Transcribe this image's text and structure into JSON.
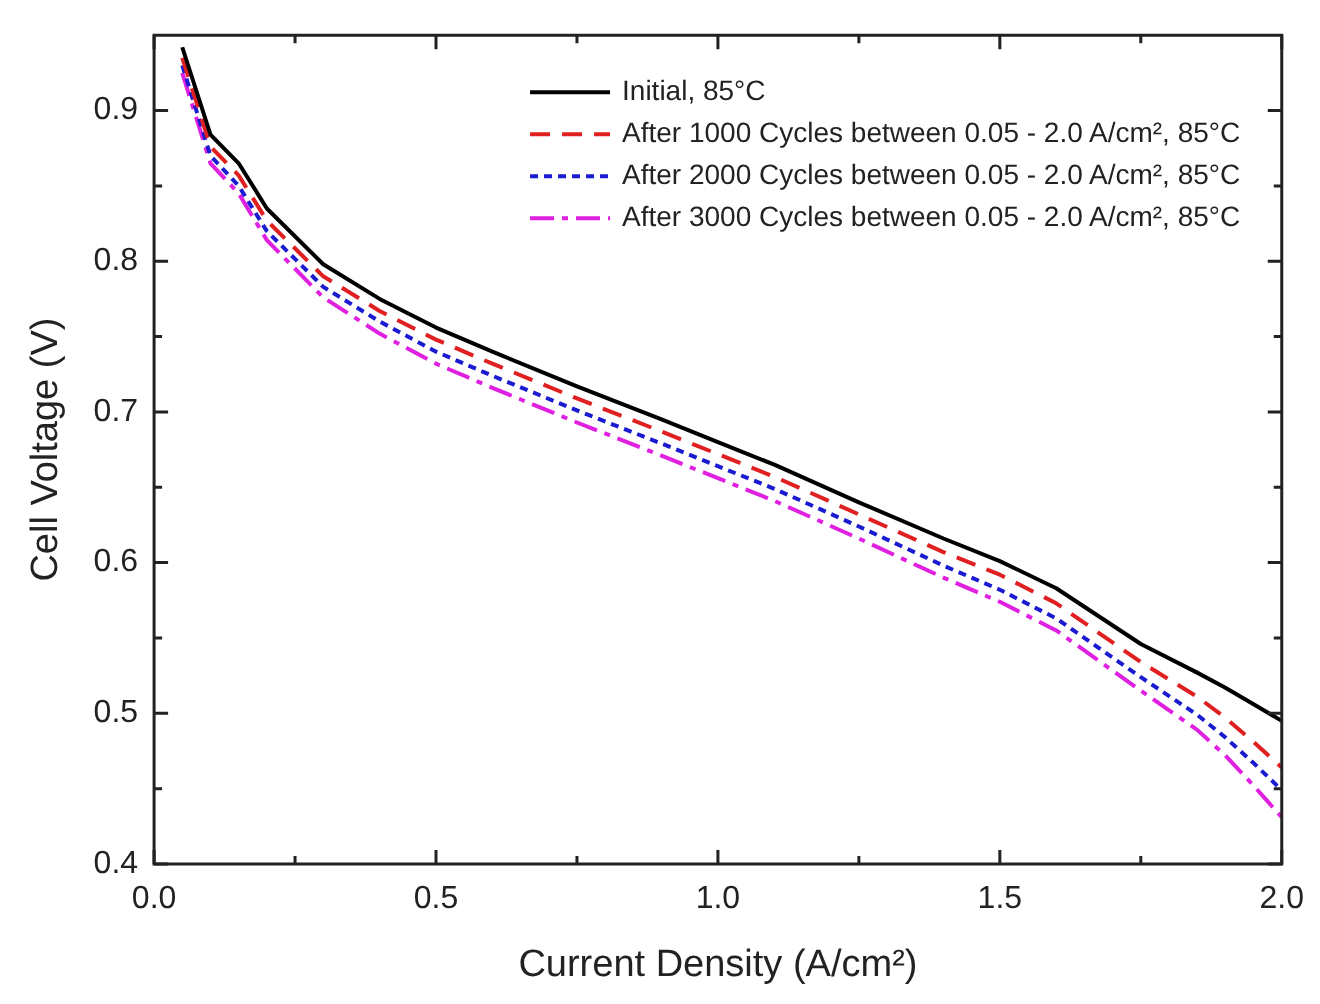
{
  "chart_data": {
    "type": "line",
    "xlabel": "Current Density (A/cm²)",
    "ylabel": "Cell Voltage (V)",
    "xlim": [
      0,
      2
    ],
    "ylim": [
      0.4,
      0.95
    ],
    "xticks": [
      {
        "value": 0,
        "label": "0.0"
      },
      {
        "value": 0.25,
        "label": null
      },
      {
        "value": 0.5,
        "label": "0.5"
      },
      {
        "value": 0.75,
        "label": null
      },
      {
        "value": 1,
        "label": "1.0"
      },
      {
        "value": 1.25,
        "label": null
      },
      {
        "value": 1.5,
        "label": "1.5"
      },
      {
        "value": 1.75,
        "label": null
      },
      {
        "value": 2,
        "label": "2.0"
      }
    ],
    "yticks": [
      0.4,
      {
        "value": 0.45,
        "label": null
      },
      0.5,
      {
        "value": 0.55,
        "label": null
      },
      0.6,
      {
        "value": 0.65,
        "label": null
      },
      0.7,
      {
        "value": 0.75,
        "label": null
      },
      0.8,
      {
        "value": 0.85,
        "label": null
      },
      0.9
    ],
    "x": [
      0.05,
      0.1,
      0.15,
      0.2,
      0.3,
      0.4,
      0.5,
      0.6,
      0.75,
      0.9,
      1.0,
      1.1,
      1.25,
      1.4,
      1.5,
      1.6,
      1.75,
      1.85,
      1.9,
      1.95,
      2.0
    ],
    "grid": false,
    "legend": "top right",
    "marker": "none",
    "series": [
      {
        "name": "Initial, 85°C",
        "color": "#000000",
        "line_style": "solid",
        "values": [
          0.942,
          0.884,
          0.865,
          0.835,
          0.798,
          0.775,
          0.756,
          0.74,
          0.717,
          0.695,
          0.68,
          0.665,
          0.64,
          0.616,
          0.601,
          0.583,
          0.546,
          0.527,
          0.517,
          0.506,
          0.495
        ]
      },
      {
        "name": "After 1000 Cycles between 0.05 - 2.0 A/cm², 85°C",
        "color": "#e02020",
        "line_style": "dashed",
        "values": [
          0.935,
          0.876,
          0.857,
          0.827,
          0.79,
          0.767,
          0.748,
          0.732,
          0.709,
          0.687,
          0.672,
          0.657,
          0.632,
          0.607,
          0.592,
          0.573,
          0.534,
          0.511,
          0.497,
          0.481,
          0.464
        ]
      },
      {
        "name": "After 2000 Cycles between 0.05 - 2.0 A/cm², 85°C",
        "color": "#1a1ad0",
        "line_style": "dotted",
        "values": [
          0.93,
          0.87,
          0.85,
          0.82,
          0.783,
          0.76,
          0.74,
          0.724,
          0.701,
          0.679,
          0.664,
          0.649,
          0.624,
          0.598,
          0.582,
          0.563,
          0.524,
          0.499,
          0.484,
          0.467,
          0.449
        ]
      },
      {
        "name": "After 3000 Cycles between 0.05 - 2.0 A/cm², 85°C",
        "color": "#e020e0",
        "line_style": "dashdot",
        "values": [
          0.925,
          0.865,
          0.845,
          0.814,
          0.776,
          0.752,
          0.732,
          0.716,
          0.693,
          0.671,
          0.656,
          0.641,
          0.616,
          0.59,
          0.574,
          0.555,
          0.515,
          0.489,
          0.472,
          0.452,
          0.431
        ]
      }
    ]
  }
}
